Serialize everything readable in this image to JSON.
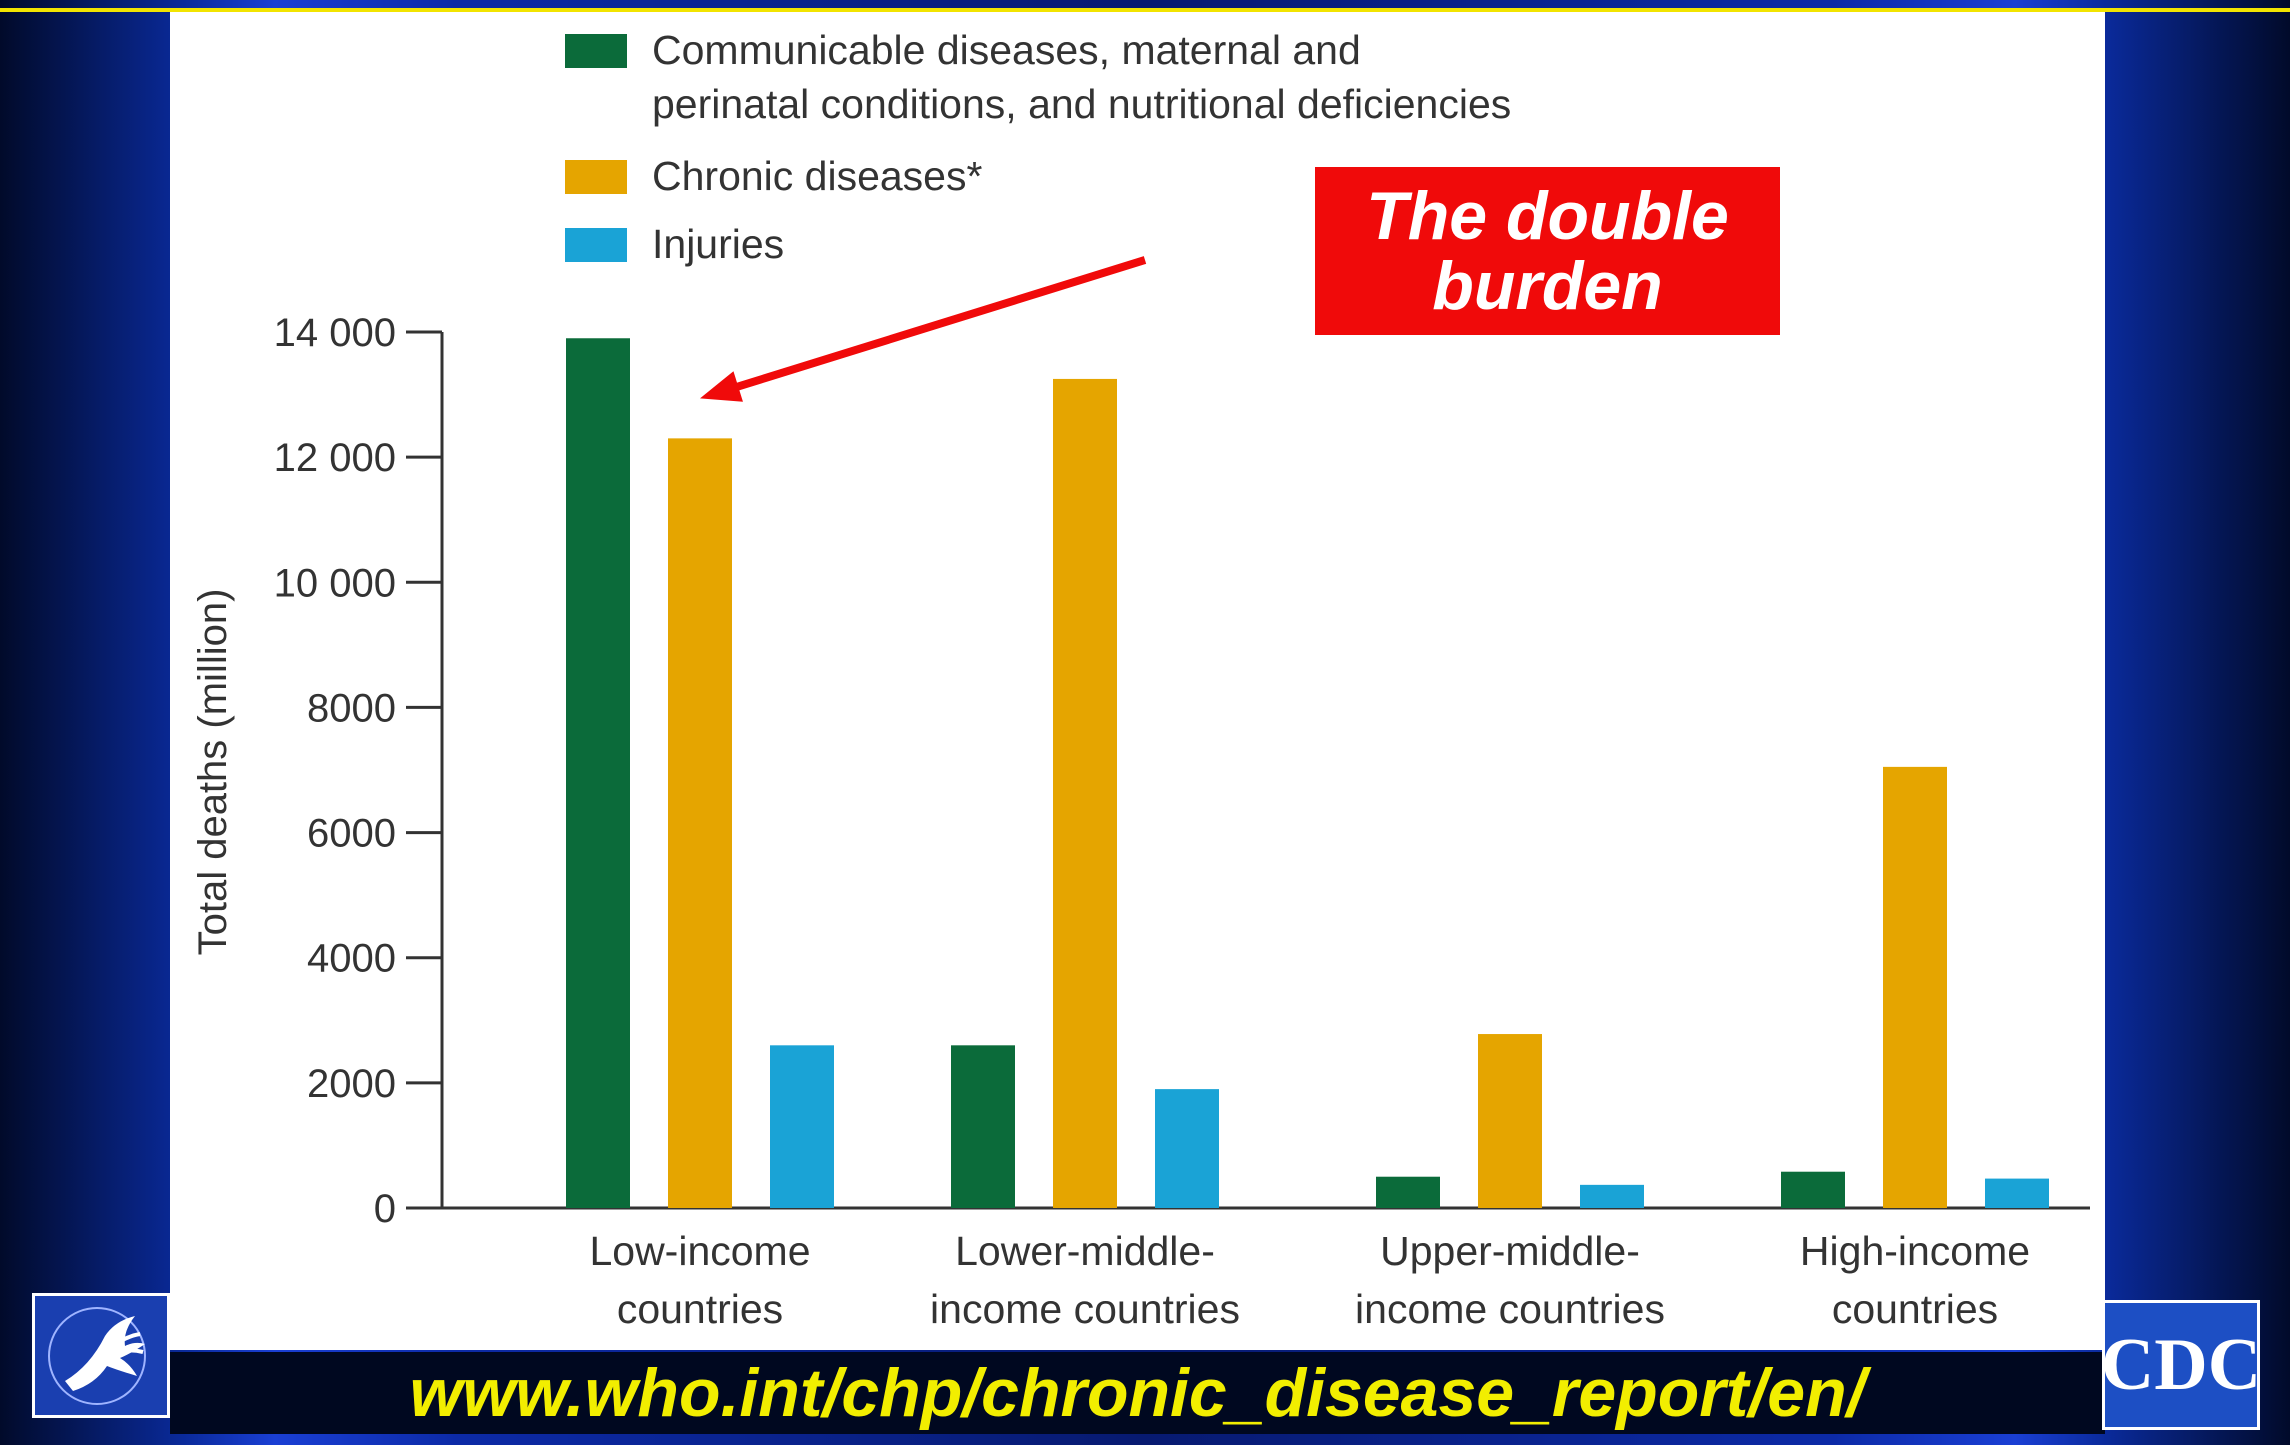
{
  "chart_data": {
    "type": "bar",
    "categories": [
      [
        "Low-income",
        "countries"
      ],
      [
        "Lower-middle-",
        "income countries"
      ],
      [
        "Upper-middle-",
        "income countries"
      ],
      [
        "High-income",
        "countries"
      ]
    ],
    "series": [
      {
        "name_lines": [
          "Communicable diseases, maternal and",
          "perinatal conditions, and nutritional deficiencies"
        ],
        "color": "#0b6b3a",
        "values": [
          13900,
          2600,
          500,
          580
        ]
      },
      {
        "name_lines": [
          "Chronic diseases*"
        ],
        "color": "#e5a500",
        "values": [
          12300,
          13250,
          2780,
          7050
        ]
      },
      {
        "name_lines": [
          "Injuries"
        ],
        "color": "#1aa3d6",
        "values": [
          2600,
          1900,
          370,
          470
        ]
      }
    ],
    "ylabel": "Total deaths (million)",
    "ylim": [
      0,
      14000
    ],
    "yticks": [
      0,
      2000,
      4000,
      6000,
      8000,
      10000,
      12000,
      14000
    ],
    "ytick_labels": [
      "0",
      "2000",
      "4000",
      "6000",
      "8000",
      "10 000",
      "12 000",
      "14 000"
    ],
    "legend_position": "top",
    "grid": false,
    "annotation": {
      "lines": [
        "The double",
        "burden"
      ],
      "color": "#f00a0a",
      "points_to": {
        "category": 0,
        "series": 1
      }
    }
  },
  "footer": {
    "url": "www.who.int/chp/chronic_disease_report/en/",
    "url_color": "#f2ee00"
  },
  "logos": {
    "left": {
      "icon": "hhs-eagle-icon"
    },
    "right": {
      "text": "CDC"
    }
  }
}
